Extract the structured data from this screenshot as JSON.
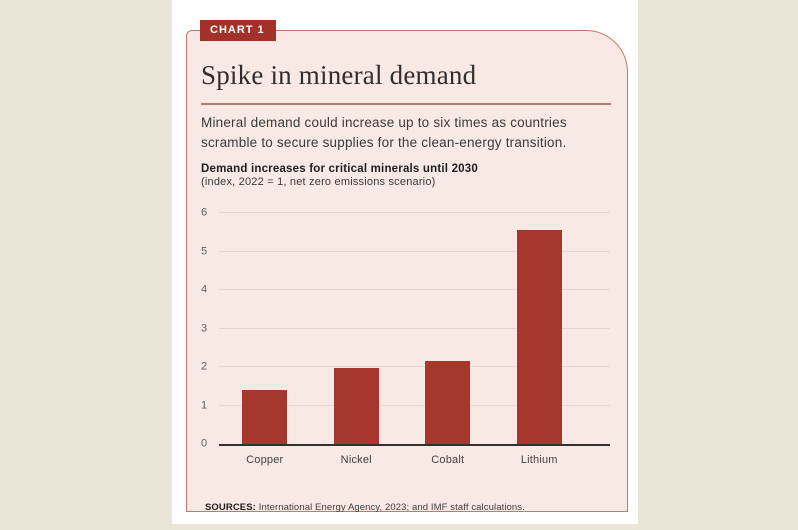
{
  "card": {
    "badge": "CHART 1",
    "headline": "Spike in mineral demand",
    "dek": "Mineral demand could increase up to six times as countries scramble to secure supplies for the clean-energy transition.",
    "sources_label": "SOURCES:",
    "sources_text": "International Energy Agency, 2023; and IMF staff calculations."
  },
  "chart_data": {
    "type": "bar",
    "title": "Demand increases for critical minerals until 2030",
    "subtitle": "(index, 2022 = 1, net zero emissions scenario)",
    "categories": [
      "Copper",
      "Nickel",
      "Cobalt",
      "Lithium"
    ],
    "values": [
      1.4,
      1.97,
      2.15,
      5.55
    ],
    "xlabel": "",
    "ylabel": "",
    "ylim": [
      0,
      6
    ],
    "yticks": [
      0,
      1,
      2,
      3,
      4,
      5,
      6
    ],
    "grid": true,
    "legend": false
  },
  "colors": {
    "accent_red": "#a5362c",
    "bar": "#a7372d",
    "card_background": "#f8e9e4",
    "card_border": "#c5796d",
    "page_background": "#ffffff",
    "outer_background": "#e9e5d7",
    "gridline": "#e7d7d2",
    "axis": "#33312f"
  }
}
